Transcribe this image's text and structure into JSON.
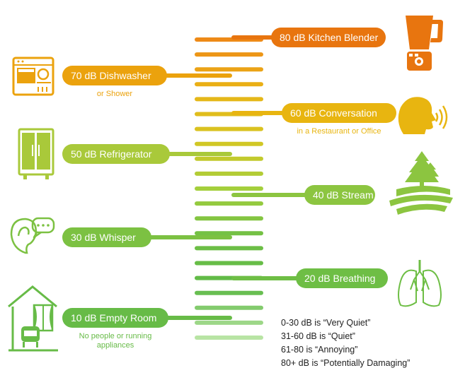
{
  "levels": [
    {
      "label": "80 dB Kitchen Blender",
      "subtitle": "",
      "side": "right",
      "color": "#e8750f",
      "icon": "blender-icon"
    },
    {
      "label": "70 dB Dishwasher",
      "subtitle": "or Shower",
      "side": "left",
      "color": "#eba20d",
      "icon": "dishwasher-icon"
    },
    {
      "label": "60 dB Conversation",
      "subtitle": "in a Restaurant or Office",
      "side": "right",
      "color": "#e8b510",
      "icon": "talking-head-icon"
    },
    {
      "label": "50 dB  Refrigerator",
      "subtitle": "",
      "side": "left",
      "color": "#a9c93a",
      "icon": "refrigerator-icon"
    },
    {
      "label": "40 dB Stream",
      "subtitle": "",
      "side": "right",
      "color": "#8cc540",
      "icon": "stream-landscape-icon"
    },
    {
      "label": "30 dB  Whisper",
      "subtitle": "",
      "side": "left",
      "color": "#7cc142",
      "icon": "ear-speech-bubble-icon"
    },
    {
      "label": "20 dB Breathing",
      "subtitle": "",
      "side": "right",
      "color": "#6ebe45",
      "icon": "lungs-icon"
    },
    {
      "label": "10 dB Empty Room",
      "subtitle": "No people or running appliances",
      "side": "left",
      "color": "#67bb47",
      "icon": "empty-room-chair-icon"
    }
  ],
  "legend": [
    "0-30 dB is “Very Quiet”",
    "31-60 dB is “Quiet”",
    "61-80 is “Annoying”",
    "80+ dB is “Potentially Damaging”"
  ],
  "meter": {
    "bar_count": 21,
    "top_color": "#ee8a17",
    "bottom_color": "#b8e4a4"
  }
}
